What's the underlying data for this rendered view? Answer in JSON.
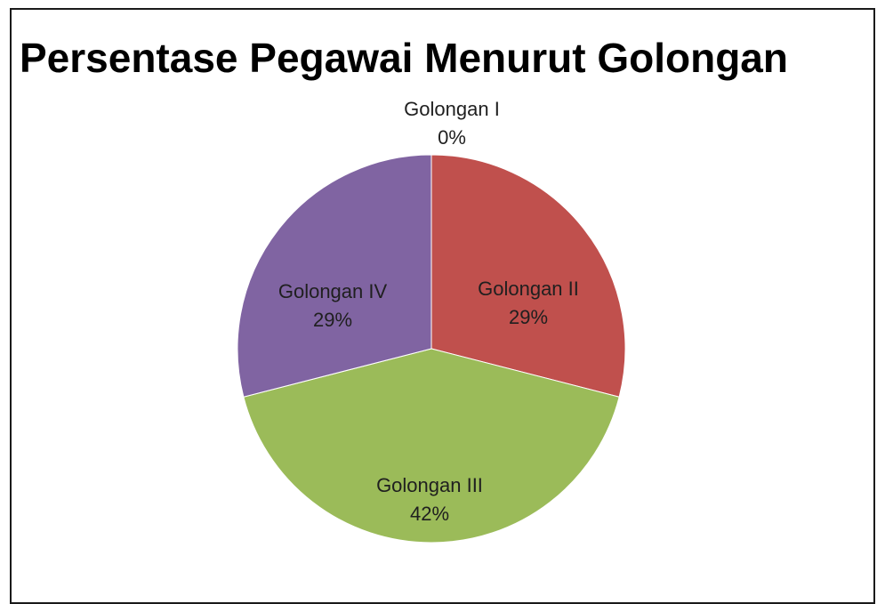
{
  "chart_data": {
    "type": "pie",
    "title": "Persentase Pegawai Menurut Golongan",
    "categories": [
      "Golongan I",
      "Golongan II",
      "Golongan III",
      "Golongan IV"
    ],
    "values": [
      0,
      29,
      42,
      29
    ],
    "value_labels": [
      "0%",
      "29%",
      "42%",
      "29%"
    ],
    "colors": [
      "#4f81bd",
      "#c0504d",
      "#9bbb59",
      "#8064a2"
    ],
    "legend": "none",
    "data_labels": "category-and-percent"
  }
}
